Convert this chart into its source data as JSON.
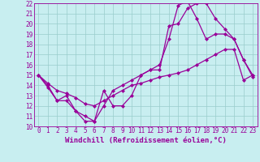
{
  "xlabel": "Windchill (Refroidissement éolien,°C)",
  "bg_color": "#c8eef0",
  "line_color": "#990099",
  "grid_color": "#99cccc",
  "xlim": [
    -0.5,
    23.5
  ],
  "ylim": [
    10,
    22
  ],
  "xticks": [
    0,
    1,
    2,
    3,
    4,
    5,
    6,
    7,
    8,
    9,
    10,
    11,
    12,
    13,
    14,
    15,
    16,
    17,
    18,
    19,
    20,
    21,
    22,
    23
  ],
  "yticks": [
    10,
    11,
    12,
    13,
    14,
    15,
    16,
    17,
    18,
    19,
    20,
    21,
    22
  ],
  "line1_x": [
    0,
    1,
    2,
    3,
    4,
    5,
    6,
    7,
    8,
    9,
    10,
    11,
    12,
    13,
    14,
    15,
    16,
    17,
    18,
    19,
    20,
    21,
    22,
    23
  ],
  "line1_y": [
    15.0,
    13.8,
    12.5,
    13.0,
    11.5,
    11.0,
    10.5,
    12.0,
    13.5,
    14.0,
    14.5,
    15.0,
    15.5,
    16.0,
    18.5,
    21.8,
    22.2,
    20.5,
    18.5,
    19.0,
    19.0,
    18.5,
    16.5,
    14.8
  ],
  "line2_x": [
    0,
    1,
    2,
    3,
    4,
    5,
    6,
    7,
    8,
    9,
    10,
    11,
    12,
    13,
    14,
    15,
    16,
    17,
    18,
    19,
    20,
    21,
    22,
    23
  ],
  "line2_y": [
    15.0,
    14.0,
    12.5,
    12.5,
    11.5,
    10.5,
    10.5,
    13.5,
    12.0,
    12.0,
    13.0,
    15.0,
    15.5,
    15.5,
    19.8,
    20.0,
    21.5,
    22.0,
    22.0,
    20.5,
    19.5,
    18.5,
    16.5,
    15.0
  ],
  "line3_x": [
    0,
    1,
    2,
    3,
    4,
    5,
    6,
    7,
    8,
    9,
    10,
    11,
    12,
    13,
    14,
    15,
    16,
    17,
    18,
    19,
    20,
    21,
    22,
    23
  ],
  "line3_y": [
    15.0,
    14.2,
    13.5,
    13.2,
    12.8,
    12.2,
    12.0,
    12.5,
    13.0,
    13.5,
    14.0,
    14.2,
    14.5,
    14.8,
    15.0,
    15.2,
    15.5,
    16.0,
    16.5,
    17.0,
    17.5,
    17.5,
    14.5,
    15.0
  ],
  "marker": "D",
  "marker_size": 2,
  "line_width": 0.9,
  "tick_fontsize": 5.5,
  "xlabel_fontsize": 6.5
}
